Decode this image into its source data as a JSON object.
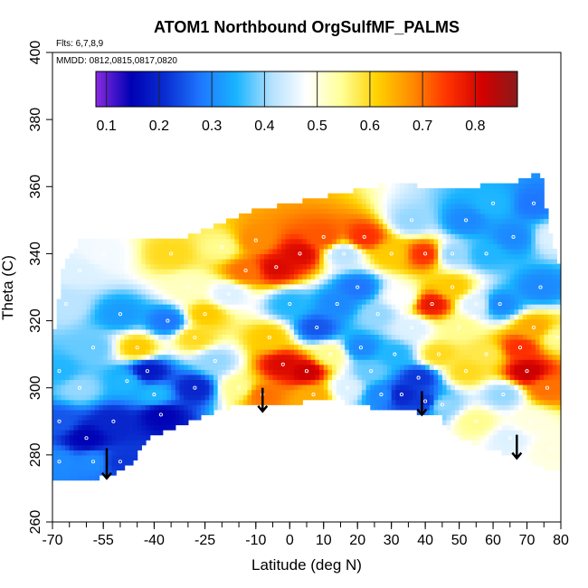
{
  "chart_data": {
    "type": "heatmap",
    "title": "ATOM1 Northbound OrgSulfMF_PALMS",
    "annotations": [
      "Flts: 6,7,8,9",
      "MMDD: 0812,0815,0817,0820"
    ],
    "xlabel": "Latitude (deg N)",
    "ylabel": "Theta (C)",
    "xlim": [
      -70,
      80
    ],
    "ylim": [
      260,
      400
    ],
    "x_ticks_major": [
      -70,
      -55,
      -40,
      -25,
      -10,
      0,
      10,
      20,
      30,
      40,
      50,
      60,
      70,
      80
    ],
    "x_tick_labels": [
      "-70",
      "-55",
      "-40",
      "-25",
      "-10",
      "0",
      "10",
      "20",
      "30",
      "40",
      "50",
      "60",
      "70",
      "80"
    ],
    "y_ticks": [
      260,
      280,
      300,
      320,
      340,
      360,
      380,
      400
    ],
    "y_tick_labels": [
      "260",
      "280",
      "300",
      "320",
      "340",
      "360",
      "380",
      "400"
    ],
    "colorbar": {
      "min": 0.08,
      "max": 0.88,
      "ticks": [
        0.1,
        0.2,
        0.3,
        0.4,
        0.5,
        0.6,
        0.7,
        0.8
      ],
      "tick_labels": [
        "0.1",
        "0.2",
        "0.3",
        "0.4",
        "0.5",
        "0.6",
        "0.7",
        "0.8"
      ],
      "colors": [
        "#8a2be2",
        "#0000b4",
        "#0a2fd2",
        "#1e78ff",
        "#19b4ff",
        "#b4e1ff",
        "#ffffff",
        "#ffff96",
        "#ffd200",
        "#ff8c00",
        "#ff3200",
        "#d20000",
        "#8b1a1a"
      ]
    },
    "coverage_upper": [
      {
        "x": -70,
        "y": 312
      },
      {
        "x": -67,
        "y": 336
      },
      {
        "x": -62,
        "y": 344
      },
      {
        "x": -50,
        "y": 344
      },
      {
        "x": -40,
        "y": 344
      },
      {
        "x": -30,
        "y": 345
      },
      {
        "x": -20,
        "y": 349
      },
      {
        "x": -10,
        "y": 353
      },
      {
        "x": 0,
        "y": 355
      },
      {
        "x": 10,
        "y": 357
      },
      {
        "x": 20,
        "y": 359
      },
      {
        "x": 30,
        "y": 361
      },
      {
        "x": 40,
        "y": 360
      },
      {
        "x": 50,
        "y": 359
      },
      {
        "x": 60,
        "y": 361
      },
      {
        "x": 70,
        "y": 362
      },
      {
        "x": 74,
        "y": 365
      },
      {
        "x": 77,
        "y": 345
      },
      {
        "x": 80,
        "y": 334
      },
      {
        "x": 80,
        "y": 276
      }
    ],
    "coverage_lower": [
      {
        "x": 80,
        "y": 276
      },
      {
        "x": 75,
        "y": 276
      },
      {
        "x": 68,
        "y": 279
      },
      {
        "x": 55,
        "y": 283
      },
      {
        "x": 48,
        "y": 286
      },
      {
        "x": 44,
        "y": 292
      },
      {
        "x": 35,
        "y": 293
      },
      {
        "x": 25,
        "y": 294
      },
      {
        "x": 10,
        "y": 297
      },
      {
        "x": 0,
        "y": 295
      },
      {
        "x": -10,
        "y": 295
      },
      {
        "x": -20,
        "y": 294
      },
      {
        "x": -25,
        "y": 292
      },
      {
        "x": -30,
        "y": 290
      },
      {
        "x": -35,
        "y": 288
      },
      {
        "x": -42,
        "y": 285
      },
      {
        "x": -47,
        "y": 277
      },
      {
        "x": -52,
        "y": 274
      },
      {
        "x": -58,
        "y": 273
      },
      {
        "x": -63,
        "y": 272
      },
      {
        "x": -70,
        "y": 272
      }
    ],
    "field_points": [
      {
        "x": -68,
        "y": 305,
        "v": 0.35
      },
      {
        "x": -68,
        "y": 290,
        "v": 0.25
      },
      {
        "x": -68,
        "y": 278,
        "v": 0.3
      },
      {
        "x": -66,
        "y": 325,
        "v": 0.42
      },
      {
        "x": -62,
        "y": 300,
        "v": 0.4
      },
      {
        "x": -60,
        "y": 285,
        "v": 0.15
      },
      {
        "x": -58,
        "y": 278,
        "v": 0.3
      },
      {
        "x": -58,
        "y": 312,
        "v": 0.38
      },
      {
        "x": -62,
        "y": 335,
        "v": 0.45
      },
      {
        "x": -55,
        "y": 340,
        "v": 0.47
      },
      {
        "x": -50,
        "y": 322,
        "v": 0.32
      },
      {
        "x": -52,
        "y": 290,
        "v": 0.2
      },
      {
        "x": -50,
        "y": 278,
        "v": 0.22
      },
      {
        "x": -48,
        "y": 302,
        "v": 0.35
      },
      {
        "x": -45,
        "y": 312,
        "v": 0.62
      },
      {
        "x": -42,
        "y": 305,
        "v": 0.18
      },
      {
        "x": -40,
        "y": 298,
        "v": 0.35
      },
      {
        "x": -38,
        "y": 292,
        "v": 0.15
      },
      {
        "x": -36,
        "y": 320,
        "v": 0.28
      },
      {
        "x": -35,
        "y": 340,
        "v": 0.6
      },
      {
        "x": -30,
        "y": 330,
        "v": 0.52
      },
      {
        "x": -28,
        "y": 315,
        "v": 0.6
      },
      {
        "x": -28,
        "y": 300,
        "v": 0.2
      },
      {
        "x": -25,
        "y": 322,
        "v": 0.62
      },
      {
        "x": -22,
        "y": 308,
        "v": 0.4
      },
      {
        "x": -20,
        "y": 342,
        "v": 0.55
      },
      {
        "x": -18,
        "y": 328,
        "v": 0.45
      },
      {
        "x": -15,
        "y": 300,
        "v": 0.55
      },
      {
        "x": -13,
        "y": 335,
        "v": 0.7
      },
      {
        "x": -10,
        "y": 344,
        "v": 0.68
      },
      {
        "x": -8,
        "y": 298,
        "v": 0.7
      },
      {
        "x": -6,
        "y": 315,
        "v": 0.62
      },
      {
        "x": -4,
        "y": 336,
        "v": 0.8
      },
      {
        "x": -2,
        "y": 307,
        "v": 0.8
      },
      {
        "x": 0,
        "y": 325,
        "v": 0.35
      },
      {
        "x": 3,
        "y": 340,
        "v": 0.8
      },
      {
        "x": 5,
        "y": 305,
        "v": 0.82
      },
      {
        "x": 7,
        "y": 298,
        "v": 0.65
      },
      {
        "x": 8,
        "y": 318,
        "v": 0.25
      },
      {
        "x": 10,
        "y": 345,
        "v": 0.72
      },
      {
        "x": 12,
        "y": 310,
        "v": 0.55
      },
      {
        "x": 14,
        "y": 325,
        "v": 0.3
      },
      {
        "x": 16,
        "y": 340,
        "v": 0.42
      },
      {
        "x": 17,
        "y": 300,
        "v": 0.45
      },
      {
        "x": 20,
        "y": 330,
        "v": 0.28
      },
      {
        "x": 21,
        "y": 312,
        "v": 0.3
      },
      {
        "x": 22,
        "y": 345,
        "v": 0.75
      },
      {
        "x": 24,
        "y": 305,
        "v": 0.38
      },
      {
        "x": 26,
        "y": 322,
        "v": 0.4
      },
      {
        "x": 27,
        "y": 298,
        "v": 0.3
      },
      {
        "x": 30,
        "y": 340,
        "v": 0.62
      },
      {
        "x": 31,
        "y": 310,
        "v": 0.35
      },
      {
        "x": 33,
        "y": 298,
        "v": 0.2
      },
      {
        "x": 33,
        "y": 327,
        "v": 0.48
      },
      {
        "x": 36,
        "y": 350,
        "v": 0.4
      },
      {
        "x": 36,
        "y": 318,
        "v": 0.45
      },
      {
        "x": 38,
        "y": 303,
        "v": 0.22
      },
      {
        "x": 40,
        "y": 340,
        "v": 0.75
      },
      {
        "x": 40,
        "y": 296,
        "v": 0.22
      },
      {
        "x": 42,
        "y": 325,
        "v": 0.78
      },
      {
        "x": 44,
        "y": 310,
        "v": 0.6
      },
      {
        "x": 45,
        "y": 295,
        "v": 0.4
      },
      {
        "x": 48,
        "y": 340,
        "v": 0.4
      },
      {
        "x": 48,
        "y": 330,
        "v": 0.62
      },
      {
        "x": 50,
        "y": 318,
        "v": 0.55
      },
      {
        "x": 52,
        "y": 350,
        "v": 0.3
      },
      {
        "x": 52,
        "y": 305,
        "v": 0.6
      },
      {
        "x": 55,
        "y": 325,
        "v": 0.45
      },
      {
        "x": 55,
        "y": 290,
        "v": 0.55
      },
      {
        "x": 58,
        "y": 340,
        "v": 0.35
      },
      {
        "x": 58,
        "y": 310,
        "v": 0.58
      },
      {
        "x": 60,
        "y": 355,
        "v": 0.35
      },
      {
        "x": 62,
        "y": 325,
        "v": 0.3
      },
      {
        "x": 63,
        "y": 298,
        "v": 0.4
      },
      {
        "x": 65,
        "y": 285,
        "v": 0.45
      },
      {
        "x": 66,
        "y": 345,
        "v": 0.3
      },
      {
        "x": 68,
        "y": 312,
        "v": 0.75
      },
      {
        "x": 70,
        "y": 305,
        "v": 0.82
      },
      {
        "x": 71,
        "y": 290,
        "v": 0.5
      },
      {
        "x": 72,
        "y": 318,
        "v": 0.65
      },
      {
        "x": 72,
        "y": 355,
        "v": 0.28
      },
      {
        "x": 74,
        "y": 330,
        "v": 0.3
      },
      {
        "x": 76,
        "y": 300,
        "v": 0.7
      },
      {
        "x": 77,
        "y": 282,
        "v": 0.5
      },
      {
        "x": 78,
        "y": 345,
        "v": 0.45
      },
      {
        "x": 79,
        "y": 315,
        "v": 0.55
      }
    ],
    "arrows": [
      {
        "x": -54,
        "from_y": 282,
        "to_y": 273
      },
      {
        "x": -8,
        "from_y": 300,
        "to_y": 293
      },
      {
        "x": 39,
        "from_y": 299,
        "to_y": 292
      },
      {
        "x": 67,
        "from_y": 286,
        "to_y": 279
      }
    ]
  }
}
